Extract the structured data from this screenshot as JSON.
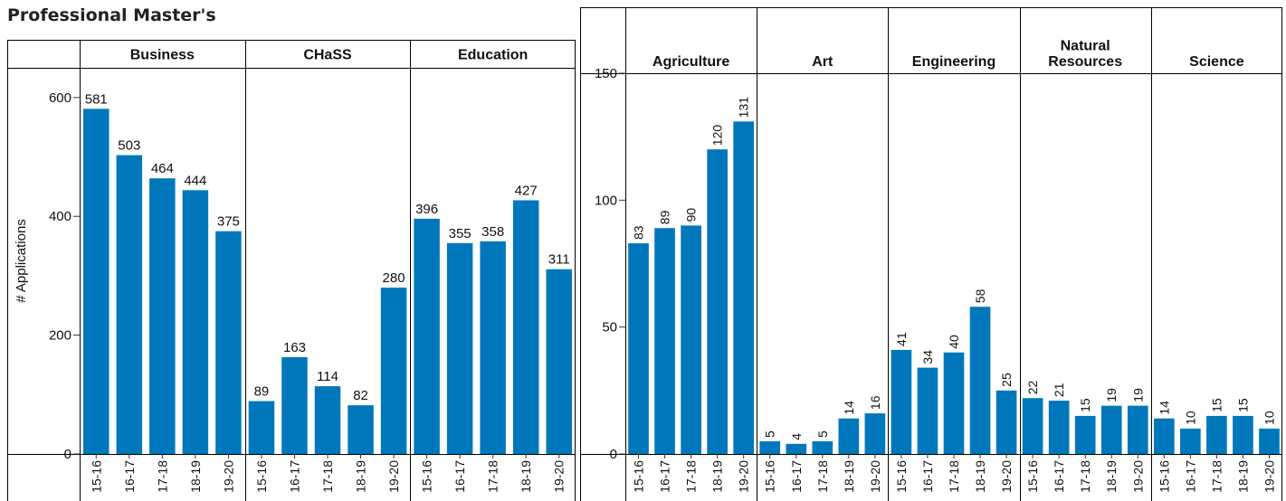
{
  "title": "Professional Master's",
  "chart_data": [
    {
      "type": "bar",
      "ylabel": "# Applications",
      "ylim": [
        0,
        650
      ],
      "yticks": [
        0,
        200,
        400,
        600
      ],
      "categories": [
        "15-16",
        "16-17",
        "17-18",
        "18-19",
        "19-20"
      ],
      "bar_color": "#0077bb",
      "panels": [
        {
          "name": "Business",
          "values": [
            581,
            503,
            464,
            444,
            375
          ]
        },
        {
          "name": "CHaSS",
          "values": [
            89,
            163,
            114,
            82,
            280
          ]
        },
        {
          "name": "Education",
          "values": [
            396,
            355,
            358,
            427,
            311
          ]
        }
      ]
    },
    {
      "type": "bar",
      "ylabel": "",
      "ylim": [
        0,
        150
      ],
      "yticks": [
        0,
        50,
        100,
        150
      ],
      "categories": [
        "15-16",
        "16-17",
        "17-18",
        "18-19",
        "19-20"
      ],
      "bar_color": "#0077bb",
      "panels": [
        {
          "name": "Agriculture",
          "values": [
            83,
            89,
            90,
            120,
            131
          ]
        },
        {
          "name": "Art",
          "values": [
            5,
            4,
            5,
            14,
            16
          ]
        },
        {
          "name": "Engineering",
          "values": [
            41,
            34,
            40,
            58,
            25
          ]
        },
        {
          "name": "Natural Resources",
          "values": [
            22,
            21,
            15,
            19,
            19
          ]
        },
        {
          "name": "Science",
          "values": [
            14,
            10,
            15,
            15,
            10
          ]
        }
      ]
    }
  ]
}
